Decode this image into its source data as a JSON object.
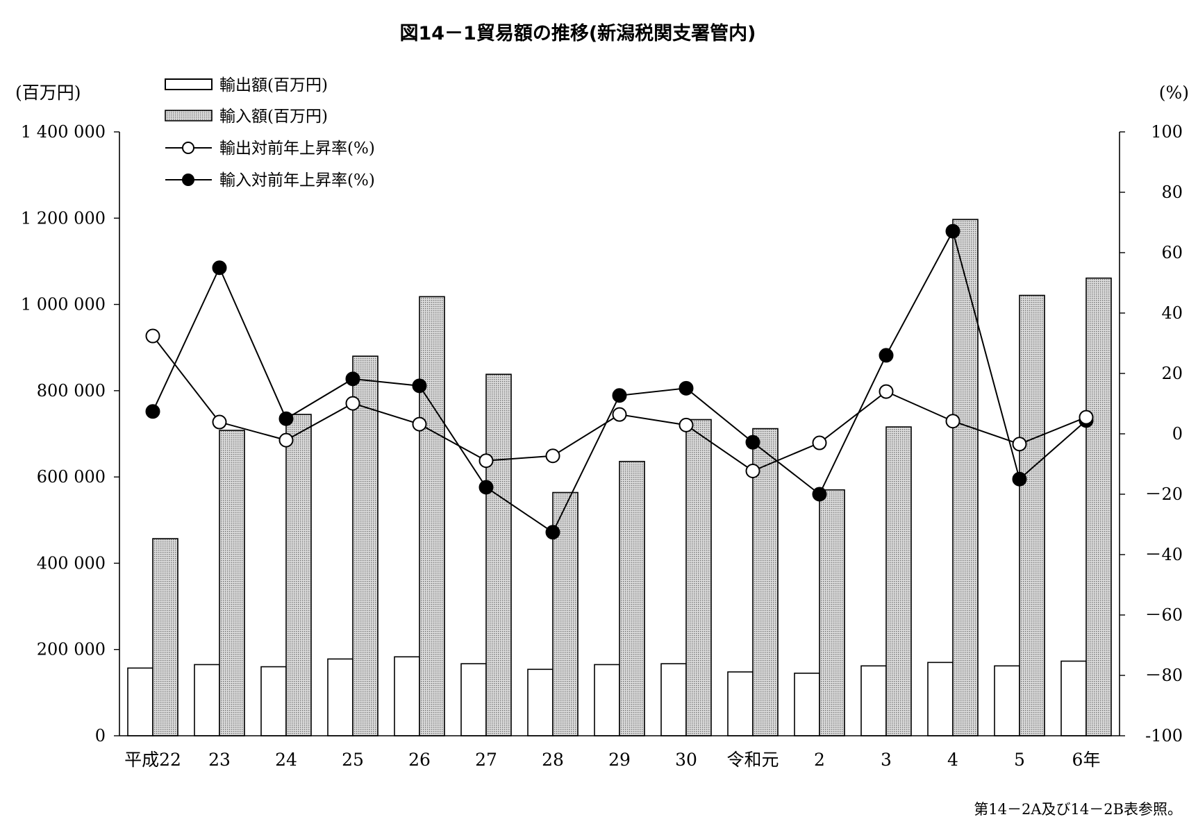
{
  "chart_data": {
    "type": "bar",
    "title": "図14－1貿易額の推移(新潟税関支署管内)",
    "y_left_unit": "(百万円)",
    "y_right_unit": "(%)",
    "ylim_left": [
      0,
      1400000
    ],
    "ylim_right": [
      -100,
      100
    ],
    "left_ticks": [
      {
        "value": 0,
        "label": "0"
      },
      {
        "value": 200000,
        "label": "200 000"
      },
      {
        "value": 400000,
        "label": "400 000"
      },
      {
        "value": 600000,
        "label": "600 000"
      },
      {
        "value": 800000,
        "label": "800 000"
      },
      {
        "value": 1000000,
        "label": "1 000 000"
      },
      {
        "value": 1200000,
        "label": "1 200 000"
      },
      {
        "value": 1400000,
        "label": "1 400 000"
      }
    ],
    "right_ticks": [
      {
        "value": -100,
        "label": "-100"
      },
      {
        "value": -80,
        "label": "－80"
      },
      {
        "value": -60,
        "label": "－60"
      },
      {
        "value": -40,
        "label": "－40"
      },
      {
        "value": -20,
        "label": "－20"
      },
      {
        "value": 0,
        "label": "0"
      },
      {
        "value": 20,
        "label": "20"
      },
      {
        "value": 40,
        "label": "40"
      },
      {
        "value": 60,
        "label": "60"
      },
      {
        "value": 80,
        "label": "80"
      },
      {
        "value": 100,
        "label": "100"
      }
    ],
    "categories": [
      "平成22",
      "23",
      "24",
      "25",
      "26",
      "27",
      "28",
      "29",
      "30",
      "令和元",
      "2",
      "3",
      "4",
      "5",
      "6年"
    ],
    "series": [
      {
        "name": "輸出額(百万円)",
        "kind": "bar",
        "axis": "left",
        "fill": "#ffffff",
        "values": [
          157000,
          165000,
          160000,
          178000,
          183000,
          167000,
          154000,
          165000,
          167000,
          148000,
          145000,
          162000,
          170000,
          162000,
          173000
        ]
      },
      {
        "name": "輸入額(百万円)",
        "kind": "bar",
        "axis": "left",
        "fill": "#c8c8c8",
        "values": [
          457000,
          708000,
          745000,
          880000,
          1018000,
          838000,
          564000,
          636000,
          733000,
          712000,
          570000,
          716000,
          1197000,
          1021000,
          1061000
        ]
      },
      {
        "name": "輸出対前年上昇率(%)",
        "kind": "line",
        "axis": "right",
        "marker": "open",
        "values": [
          32.4,
          3.9,
          -2.1,
          10.1,
          3.2,
          -8.9,
          -7.3,
          6.4,
          2.9,
          -12.3,
          -3.0,
          14.0,
          4.2,
          -3.4,
          5.5
        ]
      },
      {
        "name": "輸入対前年上昇率(%)",
        "kind": "line",
        "axis": "right",
        "marker": "filled",
        "values": [
          7.4,
          55.0,
          5.0,
          18.2,
          15.9,
          -17.7,
          -32.6,
          12.7,
          15.1,
          -2.8,
          -20.0,
          26.0,
          67.1,
          -15.0,
          4.4
        ]
      }
    ],
    "legend_position": "top-left",
    "grid": false,
    "footnote": "第14－2A及び14－2B表参照。"
  }
}
